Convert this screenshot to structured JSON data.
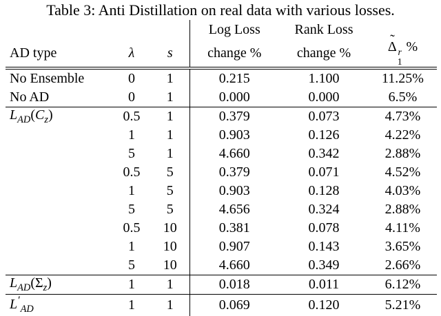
{
  "caption": "Table 3: Anti Distillation on real data with various losses.",
  "table": {
    "header": {
      "ad_type": "AD type",
      "lambda": "λ",
      "s": "s",
      "group_log": "Log Loss",
      "group_rank": "Rank Loss",
      "change_log": "change %",
      "change_rank": "change %",
      "delta": "Δ̃^{r}_{1} %"
    },
    "rows": [
      {
        "ad_type": "No Ensemble",
        "math": false,
        "rule_above": false,
        "lambda": "0",
        "s": "1",
        "log_loss_change": "0.215",
        "rank_loss_change": "1.100",
        "delta_r1": "11.25%"
      },
      {
        "ad_type": "No AD",
        "math": false,
        "rule_above": false,
        "lambda": "0",
        "s": "1",
        "log_loss_change": "0.000",
        "rank_loss_change": "0.000",
        "delta_r1": "6.5%"
      },
      {
        "ad_type": "L_{AD}(C_{z})",
        "math": true,
        "rule_above": true,
        "lambda": "0.5",
        "s": "1",
        "log_loss_change": "0.379",
        "rank_loss_change": "0.073",
        "delta_r1": "4.73%"
      },
      {
        "ad_type": "",
        "math": true,
        "rule_above": false,
        "lambda": "1",
        "s": "1",
        "log_loss_change": "0.903",
        "rank_loss_change": "0.126",
        "delta_r1": "4.22%"
      },
      {
        "ad_type": "",
        "math": true,
        "rule_above": false,
        "lambda": "5",
        "s": "1",
        "log_loss_change": "4.660",
        "rank_loss_change": "0.342",
        "delta_r1": "2.88%"
      },
      {
        "ad_type": "",
        "math": true,
        "rule_above": false,
        "lambda": "0.5",
        "s": "5",
        "log_loss_change": "0.379",
        "rank_loss_change": "0.071",
        "delta_r1": "4.52%"
      },
      {
        "ad_type": "",
        "math": true,
        "rule_above": false,
        "lambda": "1",
        "s": "5",
        "log_loss_change": "0.903",
        "rank_loss_change": "0.128",
        "delta_r1": "4.03%"
      },
      {
        "ad_type": "",
        "math": true,
        "rule_above": false,
        "lambda": "5",
        "s": "5",
        "log_loss_change": "4.656",
        "rank_loss_change": "0.324",
        "delta_r1": "2.88%"
      },
      {
        "ad_type": "",
        "math": true,
        "rule_above": false,
        "lambda": "0.5",
        "s": "10",
        "log_loss_change": "0.381",
        "rank_loss_change": "0.078",
        "delta_r1": "4.11%"
      },
      {
        "ad_type": "",
        "math": true,
        "rule_above": false,
        "lambda": "1",
        "s": "10",
        "log_loss_change": "0.907",
        "rank_loss_change": "0.143",
        "delta_r1": "3.65%"
      },
      {
        "ad_type": "",
        "math": true,
        "rule_above": false,
        "lambda": "5",
        "s": "10",
        "log_loss_change": "4.660",
        "rank_loss_change": "0.349",
        "delta_r1": "2.66%"
      },
      {
        "ad_type": "L_{AD}(Σ_{z})",
        "math": true,
        "rule_above": true,
        "lambda": "1",
        "s": "1",
        "log_loss_change": "0.018",
        "rank_loss_change": "0.011",
        "delta_r1": "6.12%"
      },
      {
        "ad_type": "L′_{AD}",
        "math": true,
        "rule_above": true,
        "lambda": "1",
        "s": "1",
        "log_loss_change": "0.069",
        "rank_loss_change": "0.120",
        "delta_r1": "5.21%"
      }
    ]
  }
}
